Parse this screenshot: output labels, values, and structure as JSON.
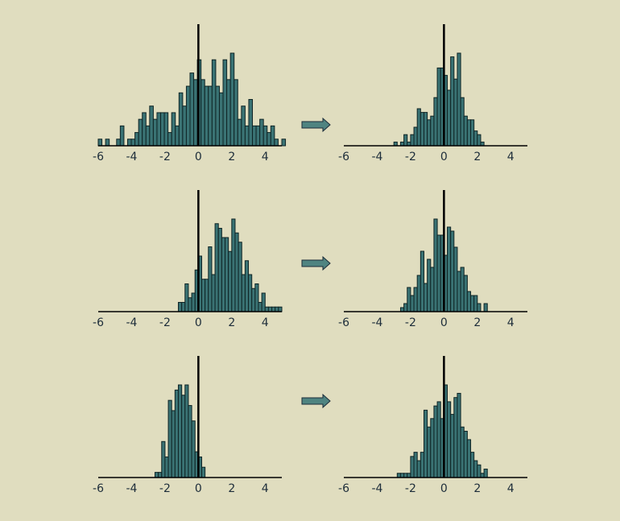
{
  "colors": {
    "background": "#e0ddbf",
    "bar_fill": "#3a7374",
    "bar_stroke": "#0f2425",
    "axis": "#000000",
    "text": "#1d2d3a",
    "arrow_fill": "#4f8481"
  },
  "icons": {
    "arrow": "right-arrow-icon"
  },
  "chart_data": [
    {
      "type": "bar",
      "panel": "row1-before",
      "x_tick_labels": [
        "-6",
        "-4",
        "-2",
        "0",
        "2",
        "4"
      ],
      "xlim": [
        -6,
        5
      ],
      "bin_width": 0.22,
      "bin_start": -6,
      "values": [
        1,
        0,
        1,
        0,
        0,
        1,
        3,
        0,
        1,
        1,
        2,
        4,
        5,
        3,
        6,
        4,
        5,
        5,
        5,
        2,
        5,
        3,
        8,
        6,
        9,
        11,
        10,
        13,
        10,
        9,
        9,
        13,
        9,
        8,
        13,
        10,
        14,
        10,
        4,
        6,
        3,
        7,
        3,
        3,
        4,
        3,
        2,
        3,
        1,
        0,
        1
      ]
    },
    {
      "type": "bar",
      "panel": "row1-after",
      "x_tick_labels": [
        "-6",
        "-4",
        "-2",
        "0",
        "2",
        "4"
      ],
      "xlim": [
        -6,
        5
      ],
      "bin_width": 0.2,
      "bin_start": -3.0,
      "values": [
        1,
        0,
        1,
        3,
        1,
        3,
        5,
        10,
        9,
        9,
        7,
        8,
        13,
        21,
        21,
        19,
        15,
        24,
        18,
        25,
        13,
        8,
        7,
        7,
        4,
        3,
        1,
        0
      ]
    },
    {
      "type": "bar",
      "panel": "row2-before",
      "x_tick_labels": [
        "-6",
        "-4",
        "-2",
        "0",
        "2",
        "4"
      ],
      "xlim": [
        -6,
        5
      ],
      "bin_width": 0.2,
      "bin_start": -1.2,
      "values": [
        2,
        2,
        6,
        3,
        4,
        9,
        12,
        7,
        7,
        14,
        8,
        19,
        18,
        16,
        16,
        13,
        20,
        17,
        15,
        8,
        11,
        8,
        5,
        6,
        2,
        4,
        1,
        1,
        1,
        1,
        1
      ]
    },
    {
      "type": "bar",
      "panel": "row2-after",
      "x_tick_labels": [
        "-6",
        "-4",
        "-2",
        "0",
        "2",
        "4"
      ],
      "xlim": [
        -6,
        5
      ],
      "bin_width": 0.2,
      "bin_start": -2.6,
      "values": [
        1,
        2,
        6,
        4,
        6,
        9,
        15,
        7,
        13,
        11,
        23,
        19,
        19,
        14,
        21,
        20,
        16,
        10,
        11,
        9,
        5,
        4,
        4,
        2,
        0,
        2
      ]
    },
    {
      "type": "bar",
      "panel": "row3-before",
      "x_tick_labels": [
        "-6",
        "-4",
        "-2",
        "0",
        "2",
        "4"
      ],
      "xlim": [
        -6,
        5
      ],
      "bin_width": 0.2,
      "bin_start": -2.6,
      "values": [
        1,
        1,
        7,
        4,
        15,
        13,
        17,
        18,
        16,
        18,
        14,
        11,
        5,
        4,
        2
      ]
    },
    {
      "type": "bar",
      "panel": "row3-after",
      "x_tick_labels": [
        "-6",
        "-4",
        "-2",
        "0",
        "2",
        "4"
      ],
      "xlim": [
        -6,
        5
      ],
      "bin_width": 0.2,
      "bin_start": -2.8,
      "values": [
        1,
        1,
        1,
        1,
        5,
        6,
        4,
        6,
        16,
        12,
        14,
        17,
        18,
        14,
        22,
        18,
        15,
        19,
        20,
        12,
        11,
        9,
        6,
        4,
        3,
        1,
        2
      ]
    }
  ]
}
